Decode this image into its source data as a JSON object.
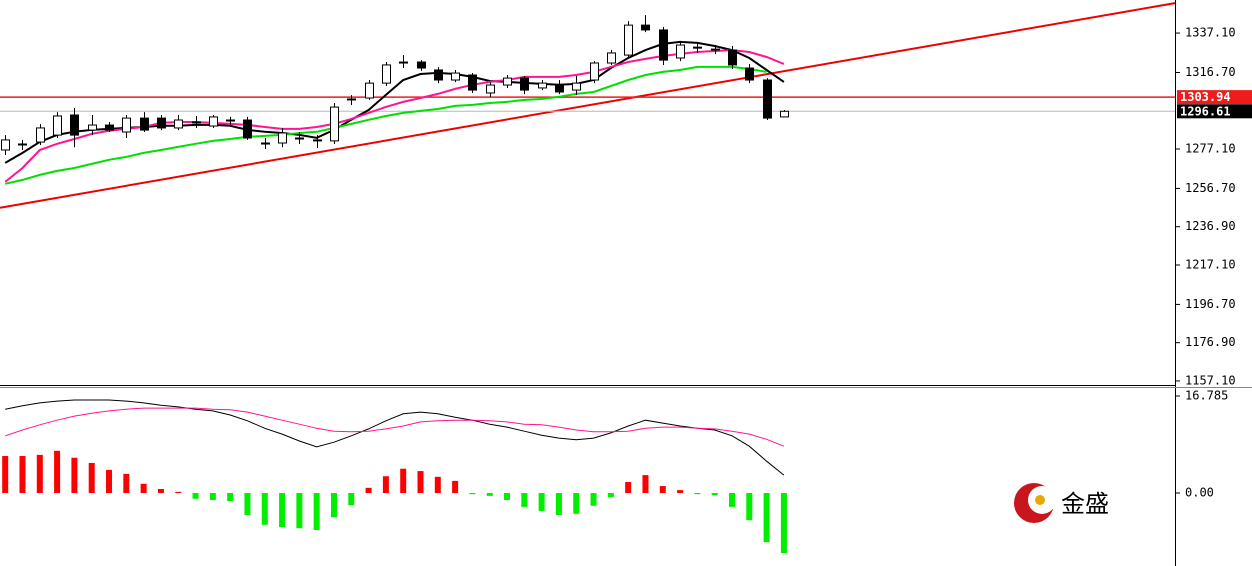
{
  "chart_data": [
    {
      "type": "candlestick",
      "xlim": [
        -0.3,
        67.6
      ],
      "ylim": [
        1155.0,
        1354.2
      ],
      "yticks": [
        {
          "value": 1337.1,
          "label": "1337.10"
        },
        {
          "value": 1316.7,
          "label": "1316.70"
        },
        {
          "value": 1277.1,
          "label": "1277.10"
        },
        {
          "value": 1256.7,
          "label": "1256.70"
        },
        {
          "value": 1236.9,
          "label": "1236.90"
        },
        {
          "value": 1217.1,
          "label": "1217.10"
        },
        {
          "value": 1196.7,
          "label": "1196.70"
        },
        {
          "value": 1176.9,
          "label": "1176.90"
        },
        {
          "value": 1157.1,
          "label": "1157.10"
        }
      ],
      "candles": {
        "open": [
          1276.6,
          1279.2,
          1280.7,
          1284.3,
          1294.7,
          1286.9,
          1289.5,
          1285.9,
          1293.1,
          1293.1,
          1288.0,
          1290.6,
          1289.0,
          1291.6,
          1292.1,
          1279.7,
          1280.2,
          1282.8,
          1281.8,
          1281.3,
          1302.5,
          1303.5,
          1311.2,
          1321.6,
          1322.1,
          1318.0,
          1312.8,
          1315.4,
          1306.1,
          1310.2,
          1313.8,
          1308.7,
          1310.2,
          1307.6,
          1312.8,
          1321.6,
          1325.7,
          1341.2,
          1338.7,
          1324.2,
          1329.3,
          1328.3,
          1328.3,
          1319.0,
          1312.8,
          1293.7
        ],
        "high": [
          1284.3,
          1281.8,
          1290.0,
          1296.2,
          1298.3,
          1294.7,
          1291.1,
          1294.7,
          1296.2,
          1294.7,
          1294.7,
          1294.2,
          1294.7,
          1293.7,
          1293.7,
          1282.8,
          1287.9,
          1285.9,
          1284.3,
          1300.9,
          1305.0,
          1312.8,
          1322.1,
          1325.7,
          1323.1,
          1319.5,
          1318.0,
          1316.4,
          1311.7,
          1315.4,
          1314.9,
          1312.8,
          1312.8,
          1314.9,
          1322.6,
          1328.3,
          1343.3,
          1346.4,
          1340.2,
          1333.0,
          1332.0,
          1330.9,
          1330.4,
          1321.1,
          1313.8,
          1297.3
        ],
        "low": [
          1274.0,
          1276.6,
          1279.2,
          1282.8,
          1278.0,
          1284.3,
          1285.9,
          1282.8,
          1285.9,
          1286.9,
          1286.9,
          1288.0,
          1288.0,
          1289.5,
          1281.8,
          1277.1,
          1278.1,
          1279.7,
          1277.6,
          1279.7,
          1299.9,
          1302.5,
          1309.7,
          1319.0,
          1317.5,
          1311.2,
          1311.7,
          1306.1,
          1304.0,
          1308.7,
          1305.5,
          1307.6,
          1305.5,
          1305.0,
          1311.2,
          1320.6,
          1324.2,
          1337.6,
          1320.6,
          1322.6,
          1326.8,
          1326.2,
          1318.5,
          1311.2,
          1292.1,
          1293.7
        ],
        "close": [
          1281.8,
          1279.7,
          1288.0,
          1294.2,
          1284.3,
          1289.5,
          1286.9,
          1293.1,
          1286.9,
          1288.0,
          1292.1,
          1291.1,
          1293.7,
          1292.1,
          1282.8,
          1280.2,
          1285.4,
          1282.3,
          1281.3,
          1298.8,
          1303.0,
          1311.2,
          1320.6,
          1322.1,
          1319.0,
          1312.8,
          1316.4,
          1307.6,
          1310.2,
          1313.8,
          1307.6,
          1311.2,
          1306.6,
          1311.2,
          1321.6,
          1326.8,
          1341.2,
          1338.7,
          1323.1,
          1330.9,
          1329.8,
          1328.8,
          1320.6,
          1312.8,
          1293.1,
          1296.61
        ]
      },
      "up_color": "#ffffff",
      "down_color": "#000000",
      "series": [
        {
          "color": "#000000",
          "values": [
            1269.9,
            1275.1,
            1280.8,
            1284.4,
            1286.0,
            1287.0,
            1287.5,
            1288.0,
            1288.5,
            1289.1,
            1289.1,
            1289.6,
            1289.6,
            1289.1,
            1287.0,
            1286.0,
            1285.4,
            1284.4,
            1282.9,
            1287.0,
            1292.2,
            1297.3,
            1305.1,
            1312.8,
            1315.9,
            1316.5,
            1315.9,
            1314.4,
            1312.3,
            1311.8,
            1311.3,
            1310.8,
            1310.3,
            1310.8,
            1312.8,
            1319.0,
            1324.2,
            1328.3,
            1331.5,
            1332.5,
            1332.0,
            1330.4,
            1328.3,
            1324.2,
            1318.0,
            1311.8
          ]
        },
        {
          "color": "#ff1493",
          "values": [
            1260.1,
            1267.3,
            1276.6,
            1279.8,
            1282.3,
            1284.9,
            1286.5,
            1287.5,
            1288.5,
            1290.6,
            1291.1,
            1291.1,
            1290.6,
            1290.1,
            1289.6,
            1288.5,
            1287.5,
            1287.5,
            1288.5,
            1290.1,
            1292.7,
            1295.8,
            1298.9,
            1301.5,
            1303.5,
            1305.6,
            1308.2,
            1310.3,
            1311.8,
            1312.8,
            1314.4,
            1314.4,
            1314.4,
            1315.4,
            1317.0,
            1319.6,
            1322.1,
            1323.7,
            1325.2,
            1326.3,
            1327.3,
            1327.8,
            1328.3,
            1327.3,
            1324.7,
            1321.1
          ]
        },
        {
          "color": "#00e000",
          "values": [
            1259.1,
            1261.1,
            1263.7,
            1265.8,
            1267.3,
            1269.4,
            1271.5,
            1273.0,
            1275.1,
            1276.6,
            1278.2,
            1279.8,
            1281.3,
            1282.3,
            1283.4,
            1283.9,
            1284.4,
            1285.4,
            1286.0,
            1288.0,
            1290.1,
            1292.2,
            1294.2,
            1295.8,
            1296.8,
            1297.8,
            1299.4,
            1299.9,
            1300.9,
            1301.5,
            1302.5,
            1303.0,
            1304.1,
            1305.6,
            1306.6,
            1309.7,
            1312.8,
            1315.4,
            1317.0,
            1318.0,
            1319.6,
            1319.6,
            1319.6,
            1318.5,
            1317.0,
            null
          ]
        }
      ],
      "trend_line": {
        "x": [
          -0.3,
          67.6
        ],
        "values": [
          1246.7,
          1352.6
        ],
        "color": "#ee0000"
      },
      "price_lines": [
        {
          "value": 1303.94,
          "color": "#ee1c1c"
        },
        {
          "value": 1296.61,
          "color": "#000000"
        }
      ]
    },
    {
      "type": "macd",
      "xlim": [
        -0.3,
        67.6
      ],
      "ylim": [
        -12.63,
        18.17
      ],
      "yticks": [
        16.785,
        {
          "value": 0,
          "label": "0.00"
        }
      ],
      "values": [
        6.4,
        6.4,
        6.6,
        7.3,
        6.1,
        5.2,
        4.0,
        3.3,
        1.6,
        0.7,
        0.2,
        -1.0,
        -1.2,
        -1.4,
        -3.8,
        -5.5,
        -5.9,
        -6.1,
        -6.4,
        -4.2,
        -2.1,
        0.9,
        2.9,
        4.2,
        3.8,
        2.8,
        2.1,
        -0.2,
        -0.5,
        -1.2,
        -2.4,
        -3.1,
        -3.8,
        -3.6,
        -2.2,
        -0.7,
        1.9,
        3.1,
        1.2,
        0.5,
        -0.2,
        -0.4,
        -2.4,
        -4.7,
        -8.5,
        -10.4
      ],
      "positive_color": "#ff0000",
      "negative_color": "#00ee00",
      "series": [
        {
          "color": "#000000",
          "values": [
            14.5,
            15.1,
            15.6,
            15.9,
            16.1,
            16.1,
            16.1,
            15.9,
            15.6,
            15.2,
            14.9,
            14.5,
            14.2,
            13.5,
            12.5,
            11.2,
            10.2,
            9.0,
            8.0,
            8.8,
            9.9,
            11.1,
            12.5,
            13.7,
            14.0,
            13.7,
            13.1,
            12.6,
            11.9,
            11.4,
            10.7,
            10.0,
            9.5,
            9.2,
            9.5,
            10.4,
            11.6,
            12.6,
            12.1,
            11.6,
            11.2,
            10.9,
            9.9,
            8.1,
            5.5,
            3.1
          ]
        },
        {
          "color": "#ff1493",
          "values": [
            9.9,
            10.9,
            11.8,
            12.6,
            13.3,
            13.8,
            14.2,
            14.5,
            14.7,
            14.7,
            14.7,
            14.7,
            14.5,
            14.4,
            14.0,
            13.3,
            12.6,
            11.9,
            11.2,
            10.7,
            10.6,
            10.7,
            11.1,
            11.6,
            12.3,
            12.5,
            12.6,
            12.6,
            12.5,
            12.3,
            11.9,
            11.8,
            11.4,
            10.9,
            10.6,
            10.6,
            10.7,
            11.2,
            11.4,
            11.4,
            11.2,
            11.1,
            10.7,
            10.2,
            9.3,
            8.1
          ]
        }
      ]
    }
  ],
  "logo": {
    "text": "金盛"
  }
}
